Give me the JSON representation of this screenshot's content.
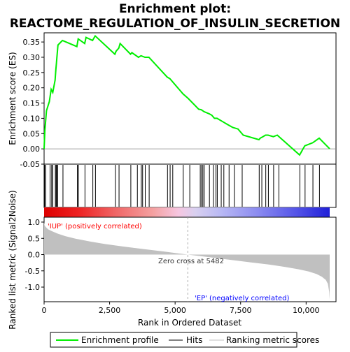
{
  "title_line1": "Enrichment plot:",
  "title_line2": "REACTOME_REGULATION_OF_INSULIN_SECRETION",
  "legend": {
    "enrichment_profile": "Enrichment profile",
    "hits": "Hits",
    "ranking_metric": "Ranking metric scores"
  },
  "colors": {
    "enrichment_line": "#00ee00",
    "hits": "#000000",
    "metric_fill": "#c0c0c0",
    "positive_label": "#ff0000",
    "negative_label": "#0000ff"
  },
  "chart_data": [
    {
      "type": "line",
      "name": "enrichment_profile",
      "ylabel": "Enrichment score (ES)",
      "xlim": [
        0,
        10900
      ],
      "ylim": [
        -0.05,
        0.38
      ],
      "y_ticks": [
        -0.05,
        0.0,
        0.05,
        0.1,
        0.15,
        0.2,
        0.25,
        0.3,
        0.35
      ],
      "y_tick_labels": [
        "-0.05",
        "0.00",
        "0.05",
        "0.10",
        "0.15",
        "0.20",
        "0.25",
        "0.30",
        "0.35"
      ],
      "x": [
        0,
        30,
        90,
        200,
        270,
        330,
        420,
        450,
        470,
        490,
        530,
        700,
        1250,
        1300,
        1550,
        1600,
        1850,
        1950,
        2700,
        2750,
        2850,
        2900,
        3300,
        3350,
        3600,
        3700,
        3850,
        4000,
        4700,
        4800,
        5300,
        5500,
        5900,
        6000,
        6050,
        6100,
        6300,
        6400,
        6500,
        6600,
        6700,
        6800,
        7000,
        7200,
        7400,
        7600,
        8200,
        8250,
        8350,
        8450,
        8550,
        8750,
        8900,
        9750,
        9950,
        10250,
        10500,
        10900
      ],
      "y": [
        0.0,
        0.06,
        0.125,
        0.155,
        0.195,
        0.185,
        0.225,
        0.26,
        0.28,
        0.3,
        0.34,
        0.355,
        0.335,
        0.36,
        0.345,
        0.365,
        0.355,
        0.37,
        0.31,
        0.32,
        0.33,
        0.345,
        0.31,
        0.315,
        0.3,
        0.305,
        0.3,
        0.3,
        0.235,
        0.23,
        0.18,
        0.165,
        0.13,
        0.128,
        0.125,
        0.122,
        0.115,
        0.11,
        0.1,
        0.1,
        0.095,
        0.09,
        0.08,
        0.07,
        0.065,
        0.045,
        0.03,
        0.035,
        0.04,
        0.045,
        0.045,
        0.04,
        0.045,
        -0.02,
        0.01,
        0.02,
        0.035,
        0.0
      ]
    },
    {
      "type": "scatter",
      "name": "hits",
      "x": [
        20,
        60,
        230,
        290,
        330,
        430,
        460,
        480,
        520,
        720,
        1270,
        1310,
        1560,
        1860,
        1960,
        2720,
        2860,
        3310,
        3560,
        3710,
        3760,
        3860,
        4010,
        4710,
        4810,
        4910,
        5310,
        5560,
        5960,
        6010,
        6060,
        6110,
        6310,
        6460,
        6560,
        6610,
        6760,
        6860,
        7060,
        7260,
        7560,
        8210,
        8310,
        8460,
        8560,
        8760,
        8960,
        9760,
        9960,
        10260,
        10510
      ]
    },
    {
      "type": "area",
      "name": "ranking_metric",
      "ylabel": "Ranked list metric (Signal2Noise)",
      "xlabel": "Rank in Ordered Dataset",
      "xlim": [
        0,
        10900
      ],
      "ylim": [
        -1.45,
        1.15
      ],
      "y_ticks": [
        -1.0,
        -0.5,
        0.0,
        0.5,
        1.0
      ],
      "y_tick_labels": [
        "-1.0",
        "-0.5",
        "0.0",
        "0.5",
        "1.0"
      ],
      "x_ticks": [
        0,
        2500,
        5000,
        7500,
        10000
      ],
      "x_tick_labels": [
        "0",
        "2,500",
        "5,000",
        "7,500",
        "10,000"
      ],
      "x": [
        0,
        20,
        60,
        150,
        300,
        500,
        800,
        1200,
        1700,
        2300,
        3000,
        3800,
        4600,
        5482,
        6300,
        7100,
        7900,
        8600,
        9200,
        9700,
        10100,
        10400,
        10600,
        10750,
        10830,
        10880,
        10900
      ],
      "y": [
        1.0,
        0.9,
        0.85,
        0.78,
        0.72,
        0.65,
        0.57,
        0.49,
        0.41,
        0.33,
        0.25,
        0.17,
        0.09,
        0.0,
        -0.08,
        -0.16,
        -0.24,
        -0.31,
        -0.38,
        -0.45,
        -0.52,
        -0.6,
        -0.68,
        -0.78,
        -0.9,
        -1.15,
        -1.38
      ],
      "zero_cross_label": "Zero cross at 5482",
      "positive_label": "'IUP' (positively correlated)",
      "negative_label": "'EP' (negatively correlated)"
    }
  ]
}
